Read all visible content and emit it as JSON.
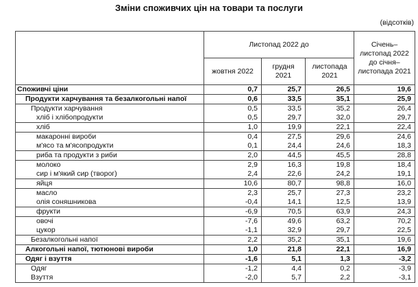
{
  "title": "Зміни споживчих цін на товари та послуги",
  "unit": "(відсотків)",
  "header": {
    "group": "Листопад 2022 до",
    "col_oct": "жовтня 2022",
    "col_dec": "грудня 2021",
    "col_nov": "листопада 2021",
    "col_ytd": "Січень–листопад 2022 до січня–листопада 2021"
  },
  "rows": [
    {
      "name": "Споживчі ціни",
      "oct": "0,7",
      "dec": "25,7",
      "nov": "26,5",
      "ytd": "19,6"
    },
    {
      "name": "Продукти харчування та безалкогольні напої",
      "oct": "0,6",
      "dec": "33,5",
      "nov": "35,1",
      "ytd": "25,9"
    },
    {
      "name": "Продукти харчування",
      "oct": "0,5",
      "dec": "33,5",
      "nov": "35,2",
      "ytd": "26,4"
    },
    {
      "name": "хліб і хлібопродукти",
      "oct": "0,5",
      "dec": "29,7",
      "nov": "32,0",
      "ytd": "29,7"
    },
    {
      "name": "хліб",
      "oct": "1,0",
      "dec": "19,9",
      "nov": "22,1",
      "ytd": "22,4"
    },
    {
      "name": "макаронні вироби",
      "oct": "0,4",
      "dec": "27,5",
      "nov": "29,6",
      "ytd": "24,6"
    },
    {
      "name": "м'ясо та м'ясопродукти",
      "oct": "0,1",
      "dec": "24,4",
      "nov": "24,6",
      "ytd": "18,3"
    },
    {
      "name": "риба та продукти з риби",
      "oct": "2,0",
      "dec": "44,5",
      "nov": "45,5",
      "ytd": "28,8"
    },
    {
      "name": "молоко",
      "oct": "2,9",
      "dec": "16,3",
      "nov": "19,8",
      "ytd": "18,4"
    },
    {
      "name": "сир і м'який сир (творог)",
      "oct": "2,4",
      "dec": "22,6",
      "nov": "24,2",
      "ytd": "19,1"
    },
    {
      "name": "яйця",
      "oct": "10,6",
      "dec": "80,7",
      "nov": "98,8",
      "ytd": "16,0"
    },
    {
      "name": "масло",
      "oct": "2,3",
      "dec": "25,7",
      "nov": "27,3",
      "ytd": "23,2"
    },
    {
      "name": "олія соняшникова",
      "oct": "-0,4",
      "dec": "14,1",
      "nov": "12,5",
      "ytd": "13,9"
    },
    {
      "name": "фрукти",
      "oct": "-6,9",
      "dec": "70,5",
      "nov": "63,9",
      "ytd": "24,3"
    },
    {
      "name": "овочі",
      "oct": "-7,6",
      "dec": "49,6",
      "nov": "63,2",
      "ytd": "70,2"
    },
    {
      "name": "цукор",
      "oct": "-1,1",
      "dec": "32,9",
      "nov": "29,7",
      "ytd": "22,5"
    },
    {
      "name": "Безалкогольні напої",
      "oct": "2,2",
      "dec": "35,2",
      "nov": "35,1",
      "ytd": "19,6"
    },
    {
      "name": "Алкогольні напої, тютюнові вироби",
      "oct": "1,0",
      "dec": "21,8",
      "nov": "22,1",
      "ytd": "16,9"
    },
    {
      "name": "Одяг і взуття",
      "oct": "-1,6",
      "dec": "5,1",
      "nov": "1,3",
      "ytd": "-3,2"
    },
    {
      "name": "Одяг",
      "oct": "-1,2",
      "dec": "4,4",
      "nov": "0,2",
      "ytd": "-3,9"
    },
    {
      "name": "Взуття",
      "oct": "-2,0",
      "dec": "5,7",
      "nov": "2,2",
      "ytd": "-3,1"
    }
  ]
}
